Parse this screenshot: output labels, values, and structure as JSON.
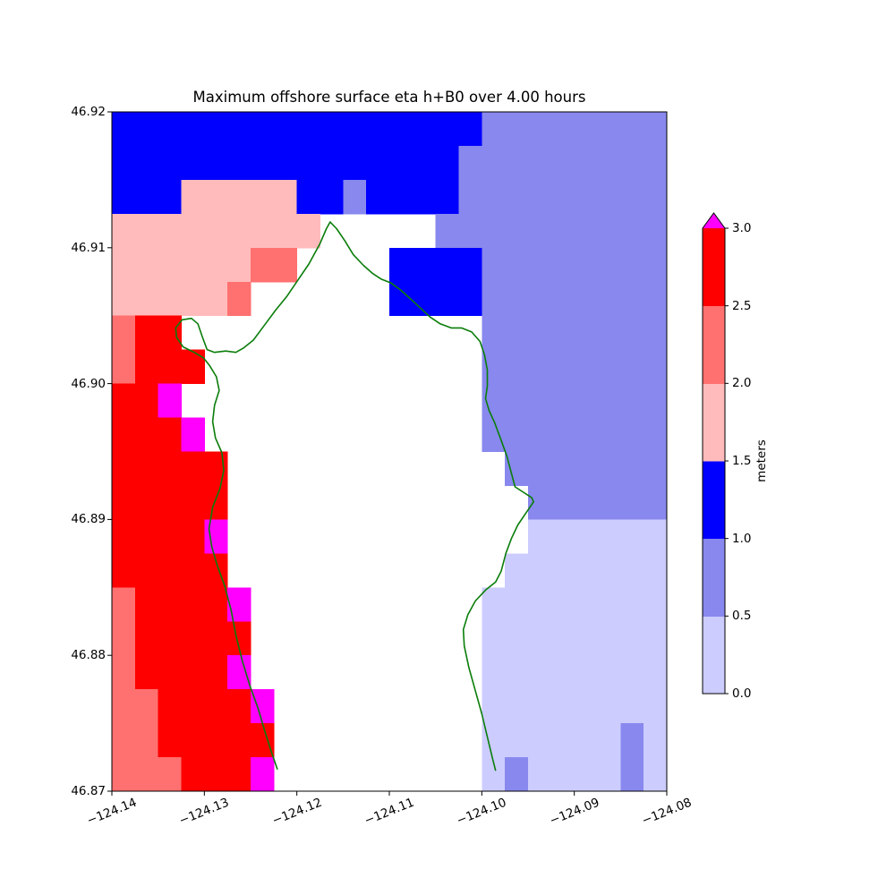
{
  "chart_data": {
    "type": "heatmap",
    "title": "Maximum offshore surface eta h+B0 over 4.00 hours",
    "x_axis": {
      "min": -124.14,
      "max": -124.08,
      "tick_labels": [
        "−124.14",
        "−124.13",
        "−124.12",
        "−124.11",
        "−124.10",
        "−124.09",
        "−124.08"
      ],
      "tick_values": [
        -124.14,
        -124.13,
        -124.12,
        -124.11,
        -124.1,
        -124.09,
        -124.08
      ]
    },
    "y_axis": {
      "min": 46.87,
      "max": 46.92,
      "tick_labels": [
        "46.87",
        "46.88",
        "46.89",
        "46.90",
        "46.91",
        "46.92"
      ],
      "tick_values": [
        46.87,
        46.88,
        46.89,
        46.9,
        46.91,
        46.92
      ]
    },
    "grid": {
      "lon_west": -124.14,
      "lat_north": 46.92,
      "dlon_deg": 0.0025,
      "dlat_deg": 0.0025,
      "ncols": 24,
      "nrows": 20,
      "rows_order": "north_to_south",
      "legend": {
        "L": "0.0–0.5 m",
        "M": "0.5–1.0 m",
        "B": "1.0–1.5 m",
        "P": "1.5–2.0 m",
        "S": "2.0–2.5 m",
        "R": "2.5–3.0 m",
        "X": ">3.0 m",
        ".": "masked land (white)"
      },
      "rows": [
        "BBBBBBBBBBBBBBBBMMMMMMMM",
        "BBBBBBBBBBBBBBBMMMMMMMMM",
        "BBBPPPPPBBMBBBBMMMMMMMMM",
        "PPPPPPPPP.....MMMMMMMMMM",
        "PPPPPPSS....BBBBMMMMMMMM",
        "PPPPPS......BBBBMMMMMMMM",
        "SRR.............MMMMMMMM",
        "SRRR............MMMMMMMM",
        "RRX.............MMMMMMMM",
        "RRRX............MMMMMMMM",
        "RRRRR............MMMMMMM",
        "RRRRR.............MMMMMM",
        "RRRRX.............LLLLLL",
        "RRRRR............LLLLLLL",
        "SRRRRX..........LLLLLLLL",
        "SRRRRR..........LLLLLLLL",
        "SRRRRX..........LLLLLLLL",
        "SSRRRRX.........LLLLLLLL",
        "SSRRRRR.........LLLLLLML",
        "SSSRRRX.........LMLLLLML"
      ]
    },
    "palette": {
      "L": "#ccccff",
      "M": "#8888ee",
      "B": "#0000ff",
      "P": "#ffbbbb",
      "S": "#ff7070",
      "R": "#ff0000",
      "X": "#ff00ff"
    },
    "frame_color": "#000000",
    "coastline": {
      "color": "#0a7d0a",
      "points": [
        [
          -124.1221,
          46.8716
        ],
        [
          -124.1228,
          46.873
        ],
        [
          -124.1235,
          46.8745
        ],
        [
          -124.1242,
          46.8761
        ],
        [
          -124.1251,
          46.8778
        ],
        [
          -124.1259,
          46.8796
        ],
        [
          -124.1266,
          46.8815
        ],
        [
          -124.1271,
          46.8833
        ],
        [
          -124.1278,
          46.8851
        ],
        [
          -124.1286,
          46.8866
        ],
        [
          -124.1292,
          46.888
        ],
        [
          -124.1295,
          46.8893
        ],
        [
          -124.1291,
          46.8909
        ],
        [
          -124.1283,
          46.8923
        ],
        [
          -124.1279,
          46.8936
        ],
        [
          -124.1281,
          46.8949
        ],
        [
          -124.1288,
          46.896
        ],
        [
          -124.1291,
          46.8972
        ],
        [
          -124.1289,
          46.8984
        ],
        [
          -124.1284,
          46.8995
        ],
        [
          -124.1287,
          46.9005
        ],
        [
          -124.1294,
          46.9013
        ],
        [
          -124.1301,
          46.9019
        ],
        [
          -124.1311,
          46.9023
        ],
        [
          -124.1323,
          46.9027
        ],
        [
          -124.133,
          46.9034
        ],
        [
          -124.1331,
          46.9041
        ],
        [
          -124.1324,
          46.9047
        ],
        [
          -124.1314,
          46.9048
        ],
        [
          -124.1307,
          46.9044
        ],
        [
          -124.1302,
          46.9034
        ],
        [
          -124.1297,
          46.9025
        ],
        [
          -124.1289,
          46.9023
        ],
        [
          -124.1277,
          46.9024
        ],
        [
          -124.1266,
          46.9023
        ],
        [
          -124.1258,
          46.9026
        ],
        [
          -124.1247,
          46.9032
        ],
        [
          -124.1235,
          46.9043
        ],
        [
          -124.1223,
          46.9054
        ],
        [
          -124.1211,
          46.9064
        ],
        [
          -124.1199,
          46.9076
        ],
        [
          -124.1187,
          46.9088
        ],
        [
          -124.1175,
          46.9103
        ],
        [
          -124.1168,
          46.9114
        ],
        [
          -124.1164,
          46.9119
        ],
        [
          -124.1157,
          46.9114
        ],
        [
          -124.1148,
          46.9105
        ],
        [
          -124.1139,
          46.9095
        ],
        [
          -124.1128,
          46.9087
        ],
        [
          -124.1118,
          46.9081
        ],
        [
          -124.1109,
          46.9077
        ],
        [
          -124.1098,
          46.9074
        ],
        [
          -124.1088,
          46.9069
        ],
        [
          -124.1078,
          46.9063
        ],
        [
          -124.1067,
          46.9056
        ],
        [
          -124.1056,
          46.9049
        ],
        [
          -124.1045,
          46.9044
        ],
        [
          -124.1033,
          46.9041
        ],
        [
          -124.1022,
          46.9041
        ],
        [
          -124.1011,
          46.9038
        ],
        [
          -124.1002,
          46.9031
        ],
        [
          -124.0997,
          46.9021
        ],
        [
          -124.0994,
          46.901
        ],
        [
          -124.0994,
          46.8998
        ],
        [
          -124.0996,
          46.8989
        ],
        [
          -124.0992,
          46.898
        ],
        [
          -124.0986,
          46.8971
        ],
        [
          -124.098,
          46.896
        ],
        [
          -124.0973,
          46.8947
        ],
        [
          -124.0968,
          46.8934
        ],
        [
          -124.0964,
          46.8924
        ],
        [
          -124.0955,
          46.892
        ],
        [
          -124.0946,
          46.8916
        ],
        [
          -124.0944,
          46.8913
        ],
        [
          -124.0952,
          46.8905
        ],
        [
          -124.0961,
          46.8896
        ],
        [
          -124.0968,
          46.8886
        ],
        [
          -124.0974,
          46.8875
        ],
        [
          -124.0979,
          46.8862
        ],
        [
          -124.0985,
          46.8854
        ],
        [
          -124.0996,
          46.8848
        ],
        [
          -124.1007,
          46.884
        ],
        [
          -124.1015,
          46.883
        ],
        [
          -124.102,
          46.8819
        ],
        [
          -124.1019,
          46.8807
        ],
        [
          -124.1014,
          46.8791
        ],
        [
          -124.1007,
          46.8774
        ],
        [
          -124.1,
          46.8757
        ],
        [
          -124.0994,
          46.874
        ],
        [
          -124.0988,
          46.8723
        ],
        [
          -124.0985,
          46.8715
        ]
      ]
    },
    "colorbar": {
      "label": "meters",
      "vmin": 0,
      "vmax": 3,
      "tick_labels": [
        "0.0",
        "0.5",
        "1.0",
        "1.5",
        "2.0",
        "2.5",
        "3.0"
      ],
      "tick_values": [
        0,
        0.5,
        1.0,
        1.5,
        2.0,
        2.5,
        3.0
      ],
      "segments_bottom_to_top": [
        "L",
        "M",
        "B",
        "P",
        "S",
        "R"
      ],
      "over_color_code": "X"
    }
  }
}
